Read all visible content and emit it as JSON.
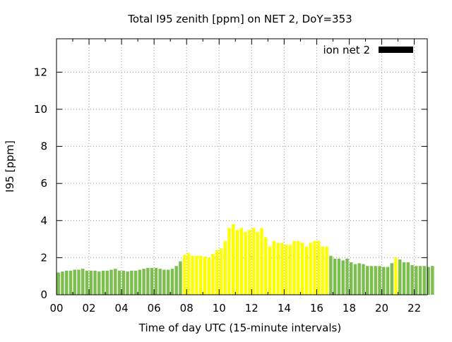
{
  "chart_data": {
    "type": "bar",
    "title": "Total I95 zenith [ppm] on NET 2, DoY=353",
    "xlabel": "Time of day UTC (15-minute intervals)",
    "ylabel": "I95 [ppm]",
    "x_tick_labels": [
      "00",
      "02",
      "04",
      "06",
      "08",
      "10",
      "12",
      "14",
      "16",
      "18",
      "20",
      "22"
    ],
    "y_tick_labels": [
      "0",
      "2",
      "4",
      "6",
      "8",
      "10",
      "12"
    ],
    "xlim": [
      0,
      22.8
    ],
    "ylim": [
      0,
      13.8
    ],
    "grid": true,
    "legend": {
      "label": "ion net 2",
      "placement": "top-right",
      "color": "#000000"
    },
    "colors": {
      "normal": "#7cbf4f",
      "elevated": "#ffff00",
      "grid": "#999999"
    },
    "bin_width_hours": 0.25,
    "start_hour": 0,
    "values": [
      1.2,
      1.25,
      1.3,
      1.3,
      1.35,
      1.35,
      1.4,
      1.3,
      1.3,
      1.3,
      1.25,
      1.3,
      1.3,
      1.35,
      1.4,
      1.3,
      1.3,
      1.25,
      1.3,
      1.3,
      1.35,
      1.4,
      1.45,
      1.45,
      1.45,
      1.4,
      1.35,
      1.35,
      1.4,
      1.55,
      1.8,
      2.15,
      2.25,
      2.1,
      2.1,
      2.1,
      2.05,
      2.0,
      2.2,
      2.4,
      2.5,
      2.9,
      3.6,
      3.8,
      3.5,
      3.6,
      3.4,
      3.5,
      3.6,
      3.4,
      3.6,
      3.1,
      2.6,
      2.9,
      2.8,
      2.8,
      2.7,
      2.7,
      2.9,
      2.9,
      2.8,
      2.6,
      2.8,
      2.9,
      2.9,
      2.6,
      2.6,
      2.1,
      1.95,
      1.95,
      1.85,
      1.95,
      1.75,
      1.65,
      1.7,
      1.65,
      1.55,
      1.55,
      1.55,
      1.55,
      1.5,
      1.5,
      1.7,
      2.0,
      1.9,
      1.75,
      1.75,
      1.6,
      1.55,
      1.55,
      1.55,
      1.5,
      1.55
    ],
    "bar_colors": [
      "normal",
      "normal",
      "normal",
      "normal",
      "normal",
      "normal",
      "normal",
      "normal",
      "normal",
      "normal",
      "normal",
      "normal",
      "normal",
      "normal",
      "normal",
      "normal",
      "normal",
      "normal",
      "normal",
      "normal",
      "normal",
      "normal",
      "normal",
      "normal",
      "normal",
      "normal",
      "normal",
      "normal",
      "normal",
      "normal",
      "normal",
      "elevated",
      "elevated",
      "elevated",
      "elevated",
      "elevated",
      "elevated",
      "elevated",
      "elevated",
      "elevated",
      "elevated",
      "elevated",
      "elevated",
      "elevated",
      "elevated",
      "elevated",
      "elevated",
      "elevated",
      "elevated",
      "elevated",
      "elevated",
      "elevated",
      "elevated",
      "elevated",
      "elevated",
      "elevated",
      "elevated",
      "elevated",
      "elevated",
      "elevated",
      "elevated",
      "elevated",
      "elevated",
      "elevated",
      "elevated",
      "elevated",
      "elevated",
      "normal",
      "normal",
      "normal",
      "normal",
      "normal",
      "normal",
      "normal",
      "normal",
      "normal",
      "normal",
      "normal",
      "normal",
      "normal",
      "normal",
      "normal",
      "normal",
      "elevated",
      "normal",
      "normal",
      "normal",
      "normal",
      "normal",
      "normal",
      "normal",
      "normal",
      "normal"
    ]
  }
}
